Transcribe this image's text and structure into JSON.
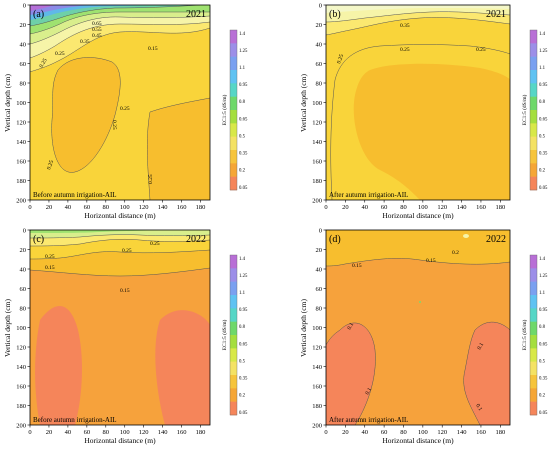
{
  "chart_data": [
    {
      "type": "heatmap",
      "panel": "(a)",
      "year": "2021",
      "note": "Before autumn irrigation-AIL",
      "xlabel": "Horizontal distance (m)",
      "ylabel": "Vertical depth (cm)",
      "xlim": [
        0,
        190
      ],
      "ylim": [
        0,
        200
      ],
      "contour_labels": [
        "0.65",
        "0.55",
        "0.45",
        "0.35",
        "0.25",
        "0.15",
        "0.25",
        "0.25",
        "0.25",
        "0.25",
        "0.25",
        "0.25"
      ]
    },
    {
      "type": "heatmap",
      "panel": "(b)",
      "year": "2021",
      "note": "After autumn irrigation-AIL",
      "xlabel": "Horizontal distance (m)",
      "ylabel": "Vertical depth (cm)",
      "xlim": [
        0,
        190
      ],
      "ylim": [
        0,
        200
      ],
      "contour_labels": [
        "0.35",
        "0.25",
        "0.25",
        "0.25"
      ]
    },
    {
      "type": "heatmap",
      "panel": "(c)",
      "year": "2022",
      "note": "Before autumn irrigation-AIL",
      "xlabel": "Horizontal distance (m)",
      "ylabel": "Vertical depth (cm)",
      "xlim": [
        0,
        190
      ],
      "ylim": [
        0,
        200
      ],
      "contour_labels": [
        "0.25",
        "0.25",
        "0.25",
        "0.15",
        "0.15"
      ]
    },
    {
      "type": "heatmap",
      "panel": "(d)",
      "year": "2022",
      "note": "",
      "note2": "After autumn irrigation-AIL",
      "xlabel": "Horizontal distance (m)",
      "ylabel": "Vertical depth (cm)",
      "xlim": [
        0,
        190
      ],
      "ylim": [
        0,
        200
      ],
      "contour_labels": [
        "0.15",
        "0.15",
        "0.2",
        "0.1",
        "0.1",
        "0.1",
        "0.1"
      ]
    }
  ],
  "xticks": [
    "0",
    "20",
    "40",
    "60",
    "80",
    "100",
    "120",
    "140",
    "160",
    "180"
  ],
  "xtick_values": [
    0,
    20,
    40,
    60,
    80,
    100,
    120,
    140,
    160,
    180
  ],
  "yticks": [
    "0",
    "20",
    "40",
    "60",
    "80",
    "100",
    "120",
    "140",
    "160",
    "180",
    "200"
  ],
  "ytick_values": [
    0,
    20,
    40,
    60,
    80,
    100,
    120,
    140,
    160,
    180,
    200
  ],
  "colorbar": {
    "label": "EC1:5 (dS/m)",
    "ticks": [
      "1.4",
      "1.25",
      "1.1",
      "0.95",
      "0.8",
      "0.65",
      "0.5",
      "0.35",
      "0.2",
      "0.05"
    ],
    "colors": [
      "#b86fd6",
      "#9c8ee8",
      "#7aa0f0",
      "#5fc2f2",
      "#56d6c6",
      "#6ed86a",
      "#a4de3e",
      "#d8e848",
      "#f4e264",
      "#f6c43c",
      "#f5a636",
      "#f5855a"
    ]
  },
  "palette": {
    "low": "#f5855a",
    "low2": "#f6a23c",
    "mid": "#f7be2e",
    "mid2": "#f9d43a",
    "light": "#fbe870",
    "pale": "#f6f4a8",
    "green": "#b9e87a",
    "green2": "#7fd96d",
    "cyan": "#5fd0d0",
    "blue": "#6a9fe8",
    "purple": "#a07ae0"
  }
}
